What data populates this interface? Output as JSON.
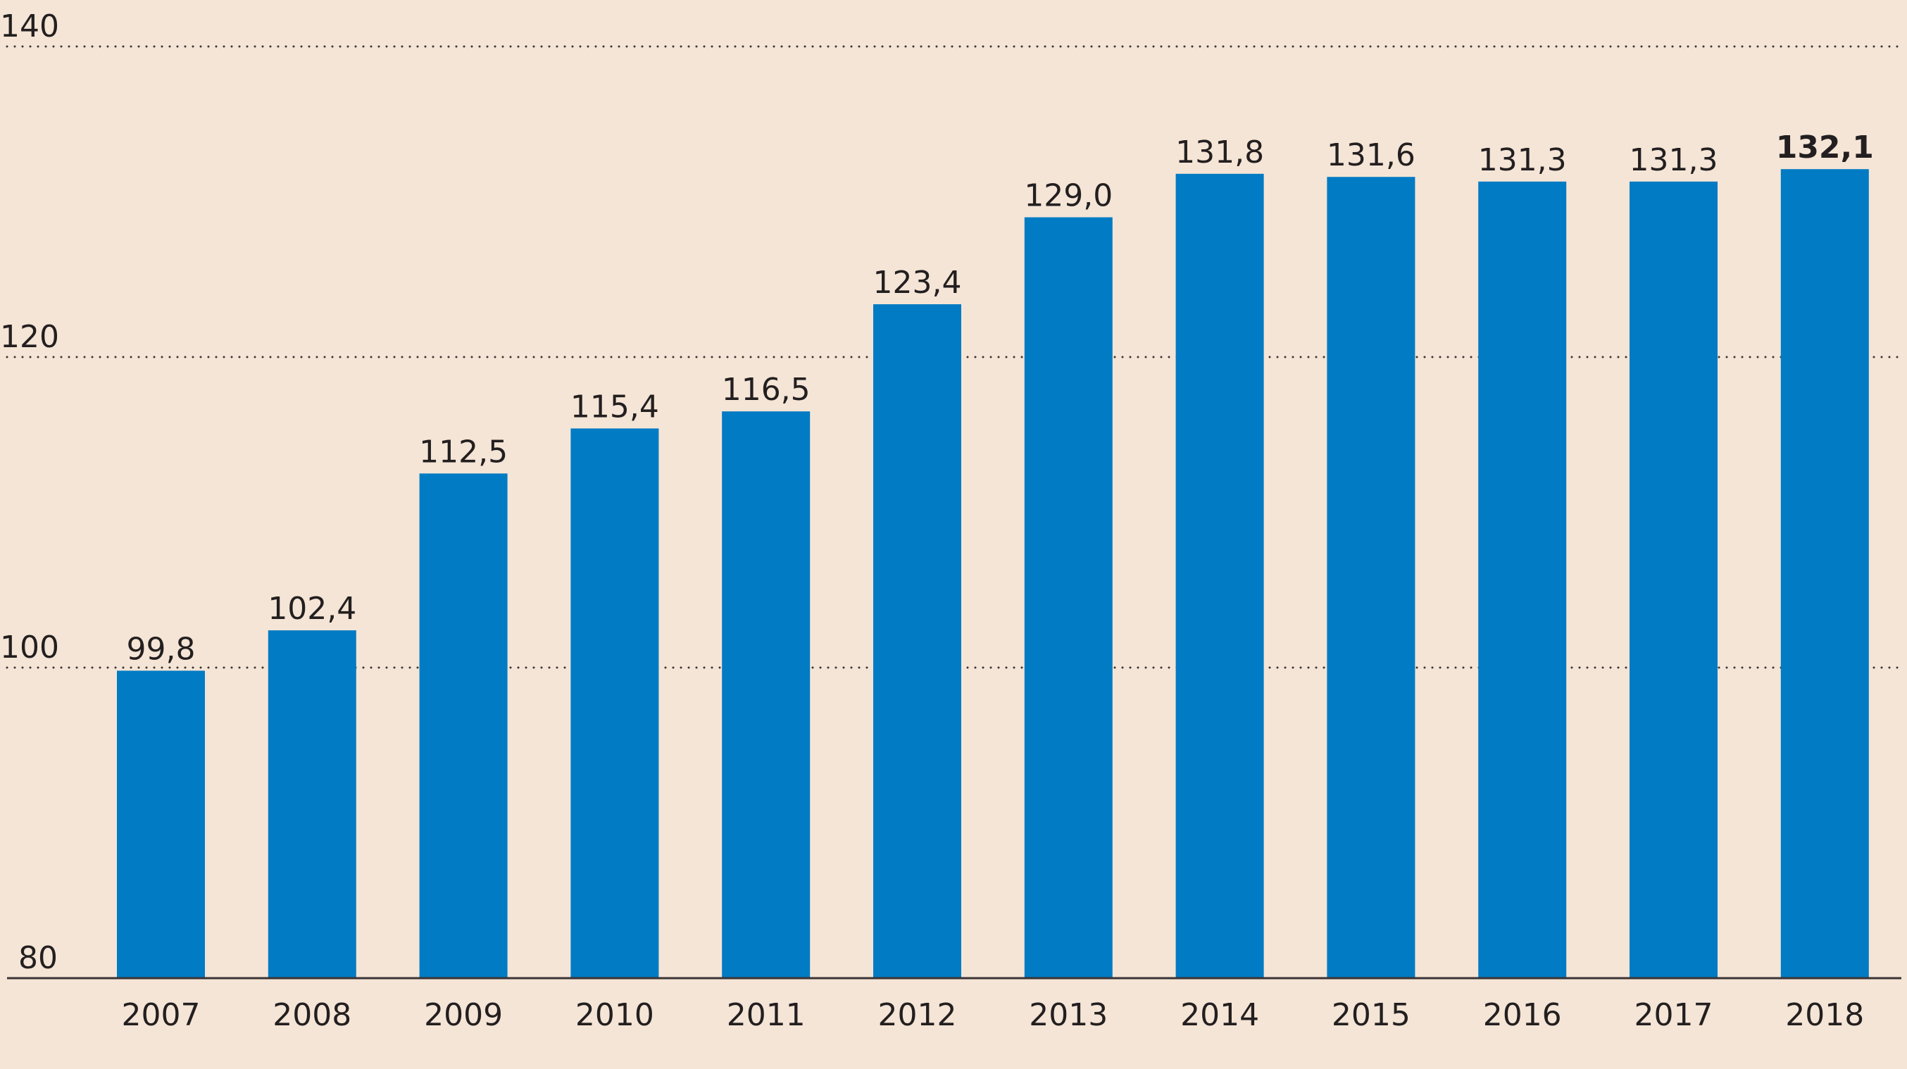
{
  "chart_data": {
    "type": "bar",
    "categories": [
      "2007",
      "2008",
      "2009",
      "2010",
      "2011",
      "2012",
      "2013",
      "2014",
      "2015",
      "2016",
      "2017",
      "2018"
    ],
    "values": [
      99.8,
      102.4,
      112.5,
      115.4,
      116.5,
      123.4,
      129.0,
      131.8,
      131.6,
      131.3,
      131.3,
      132.1
    ],
    "data_labels": [
      "99,8",
      "102,4",
      "112,5",
      "115,4",
      "116,5",
      "123,4",
      "129,0",
      "131,8",
      "131,6",
      "131,3",
      "131,3",
      "132,1"
    ],
    "highlighted_label_index": 11,
    "title": "",
    "xlabel": "",
    "ylabel": "",
    "ylim": [
      80,
      140
    ],
    "yticks": [
      80,
      100,
      120,
      140
    ],
    "ytick_labels": [
      "80",
      "100",
      "120",
      "140"
    ],
    "grid": "horizontal dotted",
    "colors": {
      "bar": "#017bc4",
      "background": "#f5e5d6",
      "text": "#231f20"
    }
  }
}
